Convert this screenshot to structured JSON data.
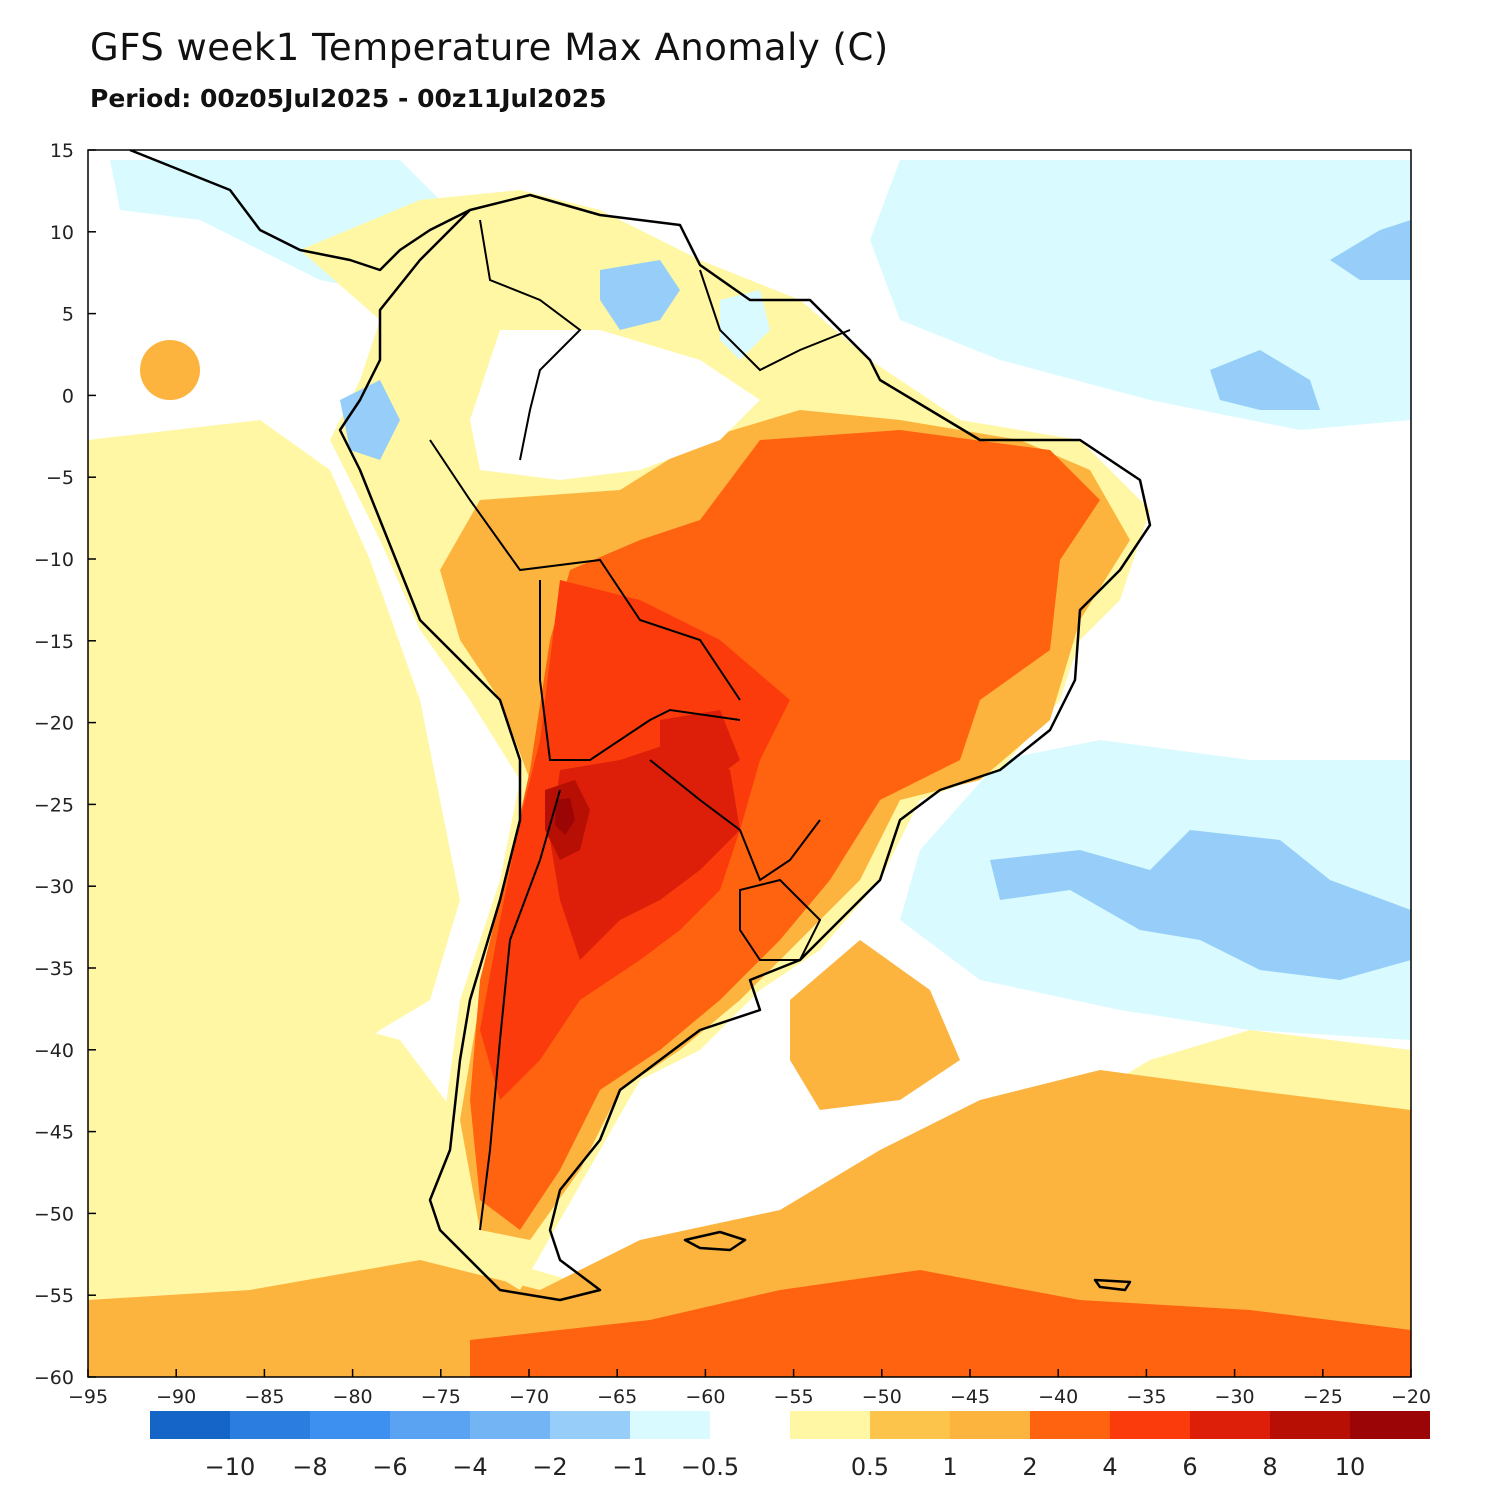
{
  "title": "GFS week1 Temperature Max Anomaly (C)",
  "subtitle": "Period: 00z05Jul2025 - 00z11Jul2025",
  "map": {
    "lon_range": [
      -95,
      -20
    ],
    "lat_range": [
      -60,
      15
    ],
    "lon_ticks": [
      -95,
      -90,
      -85,
      -80,
      -75,
      -70,
      -65,
      -60,
      -55,
      -50,
      -45,
      -40,
      -35,
      -30,
      -25,
      -20
    ],
    "lat_ticks": [
      15,
      10,
      5,
      0,
      -5,
      -10,
      -15,
      -20,
      -25,
      -30,
      -35,
      -40,
      -45,
      -50,
      -55,
      -60
    ],
    "ocean_color": "#ffffff",
    "coast_color": "#000000",
    "border_color": "#a0a0a0"
  },
  "colorbar": {
    "bins": [
      {
        "color": "#1565c8"
      },
      {
        "color": "#2b7de0"
      },
      {
        "color": "#3d8ff0"
      },
      {
        "color": "#5aa3f2"
      },
      {
        "color": "#73b4f5"
      },
      {
        "color": "#96cef9"
      },
      {
        "color": "#d9fbff"
      },
      {
        "color": "#ffffff"
      },
      {
        "color": "#fff7a3"
      },
      {
        "color": "#fcc44a"
      },
      {
        "color": "#fdb43e"
      },
      {
        "color": "#ff6310"
      },
      {
        "color": "#fb3b0c"
      },
      {
        "color": "#dd1e08"
      },
      {
        "color": "#b80f05"
      },
      {
        "color": "#9b0505"
      }
    ],
    "labels": [
      "−10",
      "−8",
      "−6",
      "−4",
      "−2",
      "−1",
      "−0.5",
      "0.5",
      "1",
      "2",
      "4",
      "6",
      "8",
      "10"
    ]
  },
  "anomaly_regions": [
    {
      "name": "brazil-warm",
      "level": "4",
      "color": "#ff6310"
    },
    {
      "name": "chaco-hot",
      "level": "6",
      "color": "#fb3b0c"
    },
    {
      "name": "argentina-hot",
      "level": "8",
      "color": "#dd1e08"
    },
    {
      "name": "andes-hot",
      "level": "10",
      "color": "#b80f05"
    },
    {
      "name": "southern-ocean-warm",
      "level": "2",
      "color": "#fdb43e"
    },
    {
      "name": "pacific-mild",
      "level": "0.5",
      "color": "#fff7a3"
    },
    {
      "name": "atlantic-cool",
      "level": "-1",
      "color": "#d9fbff"
    },
    {
      "name": "atlantic-cold",
      "level": "-2",
      "color": "#96cef9"
    }
  ]
}
